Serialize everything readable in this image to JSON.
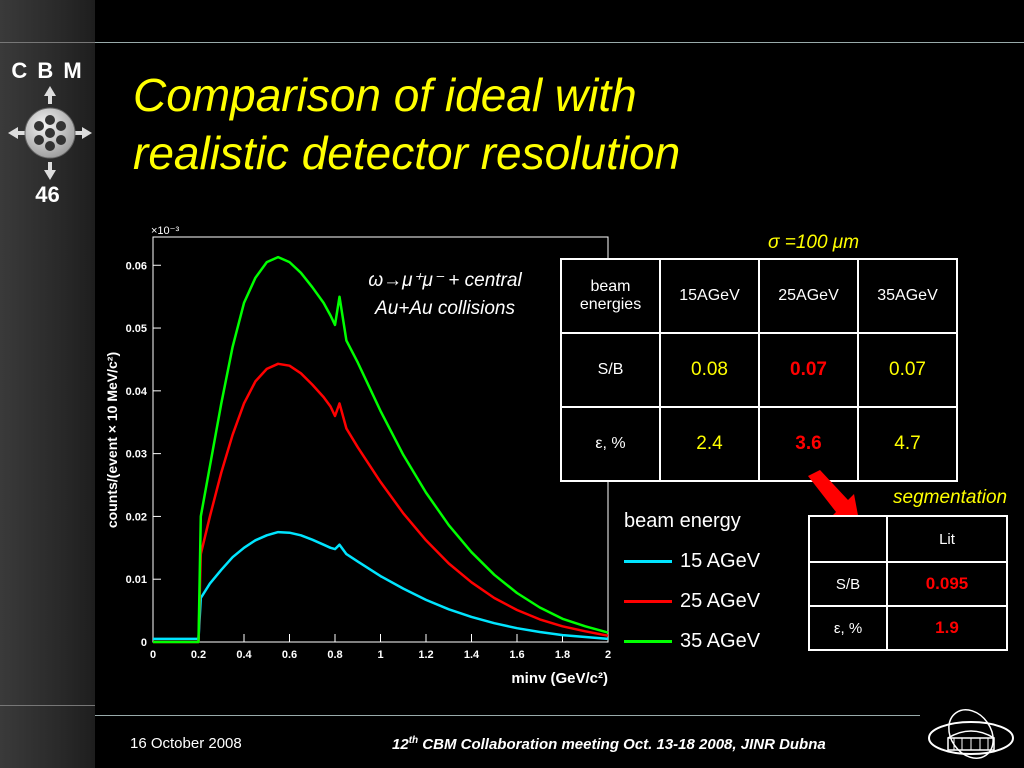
{
  "logo": {
    "text": "C B M",
    "number": "46"
  },
  "title": {
    "line1": "Comparison of ideal with",
    "line2": "realistic detector resolution"
  },
  "sigma_label": "σ =100 μm",
  "segmentation_label": "segmentation",
  "reaction": {
    "line1": "ω→μ⁺μ⁻ + central",
    "line2": "Au+Au collisions"
  },
  "table_main": {
    "header": [
      "beam energies",
      "15AGeV",
      "25AGeV",
      "35AGeV"
    ],
    "rows": [
      {
        "label": "S/B",
        "values": [
          "0.08",
          "0.07",
          "0.07"
        ]
      },
      {
        "label": "ε, %",
        "values": [
          "2.4",
          "3.6",
          "4.7"
        ]
      }
    ]
  },
  "table_seg": {
    "header": [
      "",
      "Lit"
    ],
    "rows": [
      {
        "label": "S/B",
        "value": "0.095"
      },
      {
        "label": "ε, %",
        "value": "1.9"
      }
    ]
  },
  "legend": {
    "title": "beam energy",
    "items": [
      {
        "label": "15 AGeV",
        "color": "#00e5ff"
      },
      {
        "label": "25 AGeV",
        "color": "#ff0000"
      },
      {
        "label": "35 AGeV",
        "color": "#00ff00"
      }
    ]
  },
  "chart_data": {
    "type": "line",
    "xlabel": "minv (GeV/c²)",
    "ylabel": "counts/(event × 10 MeV/c²)",
    "y_multiplier": "×10⁻³",
    "xlim": [
      0,
      2
    ],
    "ylim": [
      0,
      0.0645
    ],
    "x_ticks": [
      "0",
      "0.2",
      "0.4",
      "0.6",
      "0.8",
      "1",
      "1.2",
      "1.4",
      "1.6",
      "1.8",
      "2"
    ],
    "y_ticks": [
      "0",
      "0.01",
      "0.02",
      "0.03",
      "0.04",
      "0.05",
      "0.06"
    ],
    "x": [
      0.0,
      0.1,
      0.2,
      0.21,
      0.25,
      0.3,
      0.35,
      0.4,
      0.45,
      0.5,
      0.55,
      0.6,
      0.65,
      0.7,
      0.75,
      0.78,
      0.8,
      0.82,
      0.85,
      0.9,
      1.0,
      1.1,
      1.2,
      1.3,
      1.4,
      1.5,
      1.6,
      1.7,
      1.8,
      1.9,
      2.0
    ],
    "series": [
      {
        "name": "15 AGeV",
        "color": "#00e5ff",
        "values": [
          0.0005,
          0.0005,
          0.0005,
          0.007,
          0.0093,
          0.0115,
          0.0135,
          0.015,
          0.0162,
          0.017,
          0.0175,
          0.0174,
          0.017,
          0.0163,
          0.0155,
          0.015,
          0.0148,
          0.0155,
          0.014,
          0.0128,
          0.0105,
          0.0085,
          0.0067,
          0.0052,
          0.004,
          0.003,
          0.0022,
          0.0016,
          0.0011,
          0.0008,
          0.0005
        ]
      },
      {
        "name": "25 AGeV",
        "color": "#ff0000",
        "values": [
          0.0,
          0.0,
          0.0,
          0.014,
          0.02,
          0.027,
          0.033,
          0.038,
          0.0415,
          0.0435,
          0.0443,
          0.044,
          0.0428,
          0.041,
          0.039,
          0.0375,
          0.036,
          0.038,
          0.034,
          0.031,
          0.0255,
          0.0205,
          0.0162,
          0.0125,
          0.0095,
          0.007,
          0.0051,
          0.0036,
          0.0025,
          0.0017,
          0.001
        ]
      },
      {
        "name": "35 AGeV",
        "color": "#00ff00",
        "values": [
          0.0,
          0.0,
          0.0,
          0.02,
          0.028,
          0.038,
          0.047,
          0.054,
          0.058,
          0.0605,
          0.0613,
          0.0605,
          0.0588,
          0.0565,
          0.054,
          0.052,
          0.0505,
          0.055,
          0.048,
          0.0445,
          0.0368,
          0.0298,
          0.0238,
          0.0186,
          0.0143,
          0.0107,
          0.0078,
          0.0055,
          0.0037,
          0.0025,
          0.0015
        ]
      }
    ]
  },
  "footer": {
    "date": "16 October 2008",
    "conf_prefix": "12",
    "conf_sup": "th",
    "conf_rest": " CBM  Collaboration meeting Oct. 13-18 2008, JINR Dubna"
  }
}
